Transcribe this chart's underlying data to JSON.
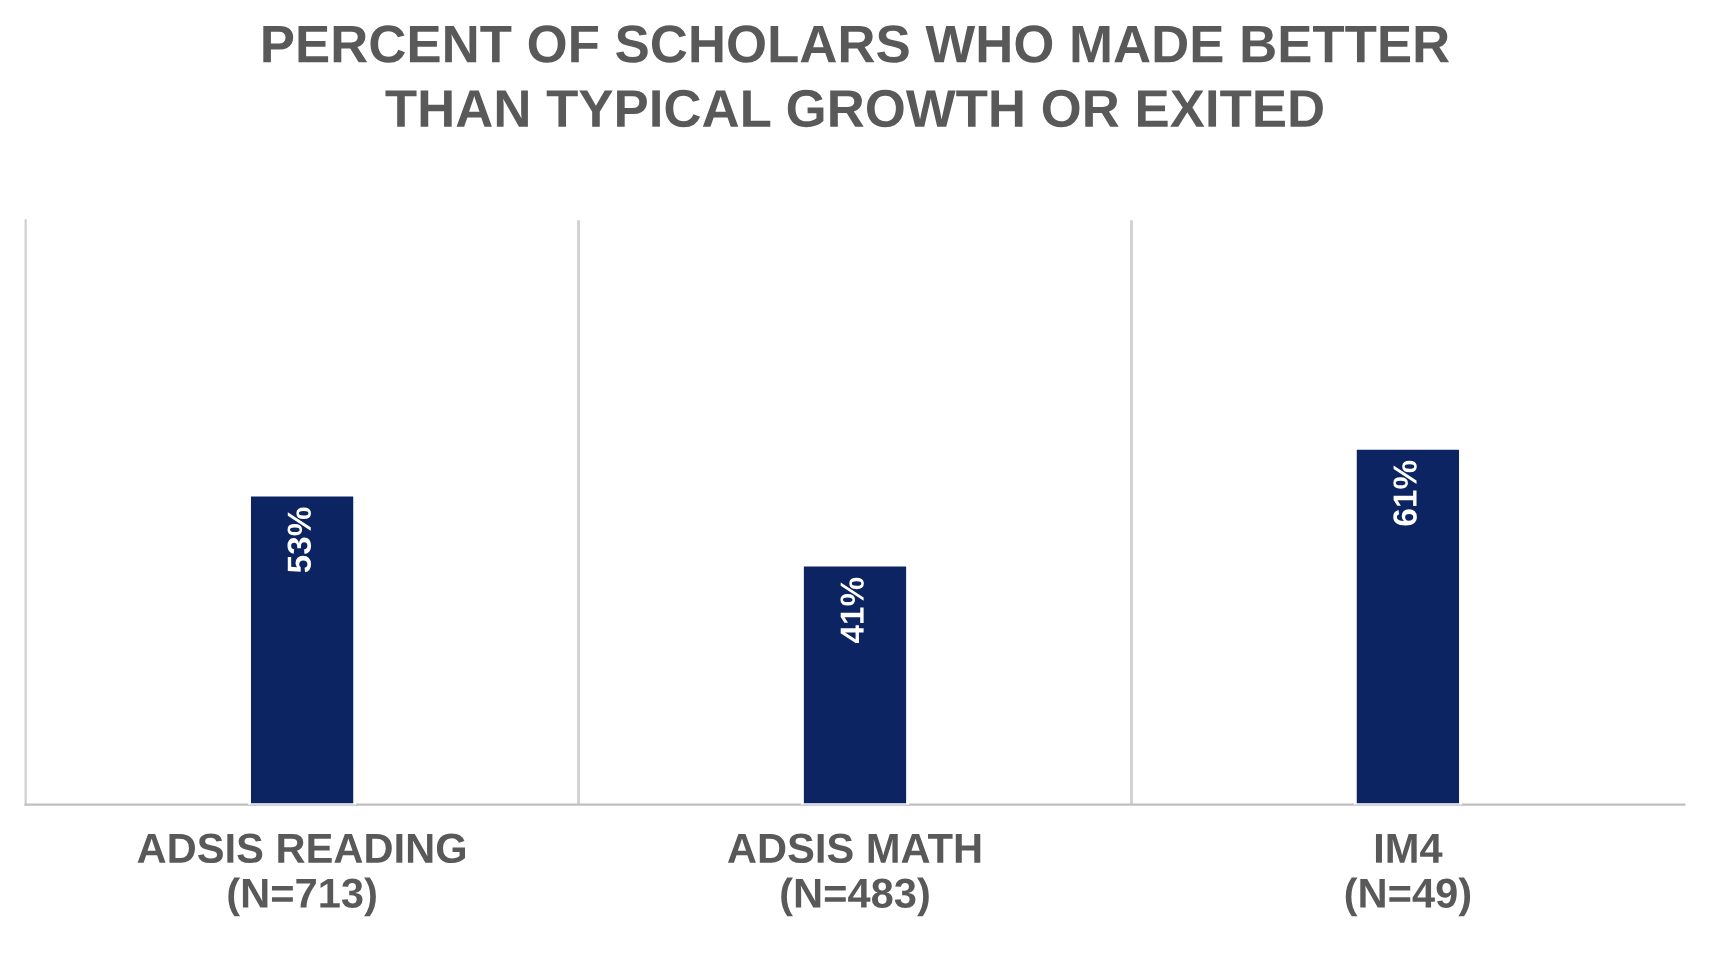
{
  "chart_data": {
    "type": "bar",
    "title": "PERCENT OF SCHOLARS WHO MADE BETTER\nTHAN TYPICAL GROWTH OR EXITED",
    "categories": [
      "ADSIS READING\n(N=713)",
      "ADSIS MATH\n(N=483)",
      "IM4\n(N=49)"
    ],
    "values": [
      53,
      41,
      61
    ],
    "value_labels": [
      "53%",
      "41%",
      "61%"
    ],
    "color": "#0c2461",
    "ylim": [
      0,
      100
    ],
    "grid": "x"
  }
}
